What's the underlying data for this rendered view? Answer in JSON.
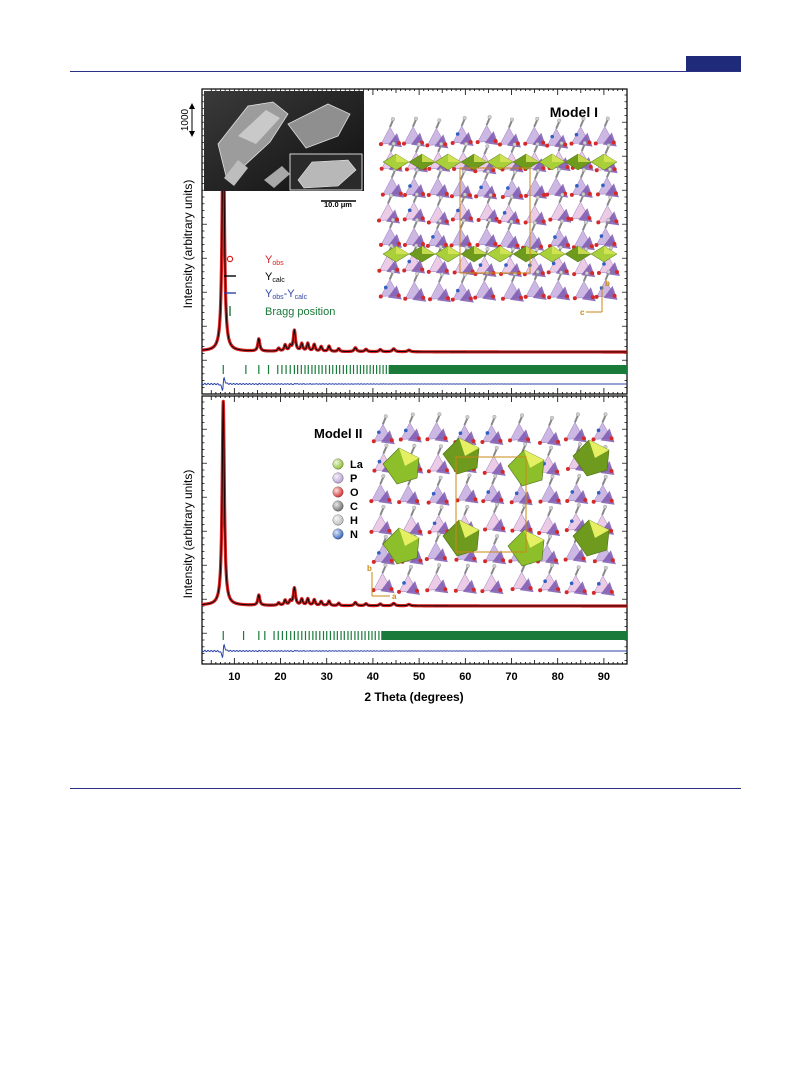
{
  "chart_data": {
    "type": "line",
    "xlabel": "2 Theta (degrees)",
    "ylabel": "Intensity (arbitrary units)",
    "xlim": [
      3,
      95
    ],
    "x_ticks": [
      10,
      20,
      30,
      40,
      50,
      60,
      70,
      80,
      90
    ],
    "scale_bar_label": "1000",
    "sem_scale_label": "10.0 μm",
    "legend": {
      "placement": "left-middle",
      "entries": [
        {
          "base": "Y",
          "sub": "obs",
          "color": "#d42020",
          "marker": "circle"
        },
        {
          "base": "Y",
          "sub": "calc",
          "color": "#000000",
          "marker": "line"
        },
        {
          "base": "Y",
          "sub": "obs",
          "mid": "-Y",
          "sub2": "calc",
          "color": "#2d44a8",
          "marker": "line"
        },
        {
          "base": "Bragg position",
          "color": "#1a7a3a",
          "marker": "tick"
        }
      ]
    },
    "elements_legend": [
      {
        "label": "La",
        "color": "#8cbf2a"
      },
      {
        "label": "P",
        "color": "#b9a0d6"
      },
      {
        "label": "O",
        "color": "#d62a2a"
      },
      {
        "label": "C",
        "color": "#6e6e6e"
      },
      {
        "label": "H",
        "color": "#bdbdbd"
      },
      {
        "label": "N",
        "color": "#2f5fc0"
      }
    ],
    "peaks": [
      {
        "x": 7.6,
        "h": 1.0,
        "w": 0.28
      },
      {
        "x": 15.3,
        "h": 0.05,
        "w": 0.25
      },
      {
        "x": 19.6,
        "h": 0.012,
        "w": 0.25
      },
      {
        "x": 21.0,
        "h": 0.025,
        "w": 0.25
      },
      {
        "x": 22.1,
        "h": 0.02,
        "w": 0.25
      },
      {
        "x": 23.0,
        "h": 0.085,
        "w": 0.28
      },
      {
        "x": 24.6,
        "h": 0.03,
        "w": 0.25
      },
      {
        "x": 25.9,
        "h": 0.032,
        "w": 0.25
      },
      {
        "x": 27.3,
        "h": 0.028,
        "w": 0.25
      },
      {
        "x": 28.8,
        "h": 0.02,
        "w": 0.25
      },
      {
        "x": 30.5,
        "h": 0.022,
        "w": 0.25
      },
      {
        "x": 32.6,
        "h": 0.012,
        "w": 0.25
      },
      {
        "x": 36.2,
        "h": 0.016,
        "w": 0.3
      },
      {
        "x": 38.5,
        "h": 0.01,
        "w": 0.3
      },
      {
        "x": 41.6,
        "h": 0.009,
        "w": 0.3
      },
      {
        "x": 44.5,
        "h": 0.012,
        "w": 0.35
      },
      {
        "x": 47.8,
        "h": 0.007,
        "w": 0.35
      }
    ],
    "panels": [
      {
        "title": "Model I",
        "bragg": [
          7.6,
          12.5,
          15.3,
          17.4,
          19.4,
          20.3,
          21.2,
          22.1,
          23.0,
          23.7,
          24.5,
          25.3,
          26.0,
          26.8,
          27.5,
          28.3,
          29.0,
          29.8,
          30.6,
          31.3,
          32.1,
          32.8,
          33.6,
          34.3,
          35.1,
          35.8,
          36.6,
          37.3,
          38.0,
          38.7,
          39.4,
          40.1,
          40.8,
          41.5,
          42.2,
          42.9
        ]
      },
      {
        "title": "Model II",
        "bragg": [
          7.6,
          12.0,
          15.3,
          16.6,
          18.6,
          19.5,
          20.4,
          21.3,
          22.2,
          23.0,
          23.8,
          24.6,
          25.4,
          26.2,
          27.0,
          27.7,
          28.5,
          29.3,
          30.0,
          30.8,
          31.6,
          32.3,
          33.1,
          33.8,
          34.6,
          35.3,
          36.1,
          36.8,
          37.6,
          38.3,
          39.1,
          39.8,
          40.5,
          41.3
        ]
      }
    ]
  }
}
